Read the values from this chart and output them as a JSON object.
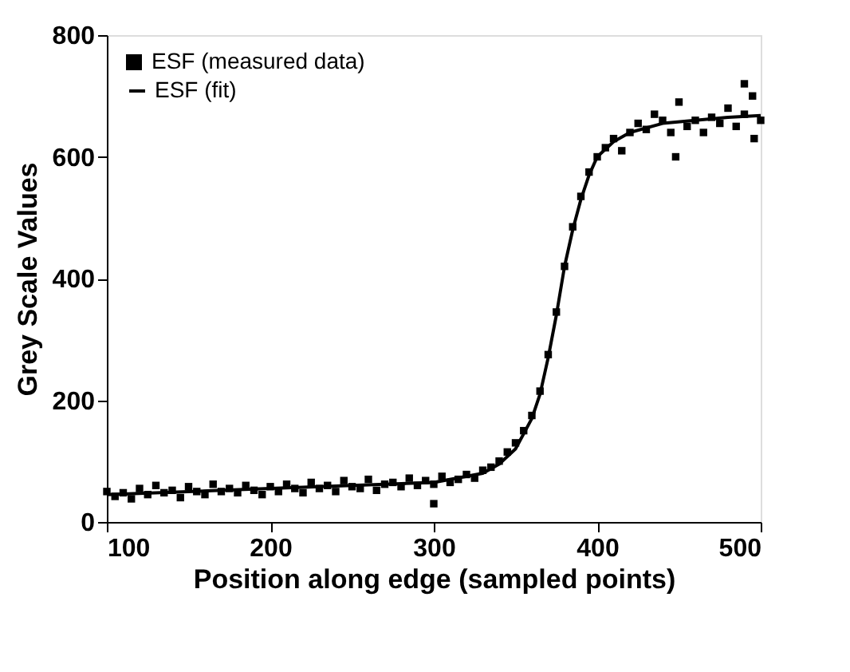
{
  "chart_data": {
    "type": "scatter",
    "xlabel": "Position along edge (sampled points)",
    "ylabel": "Grey Scale Values",
    "xlim": [
      100,
      500
    ],
    "ylim": [
      0,
      800
    ],
    "xticks": [
      100,
      200,
      300,
      400,
      500
    ],
    "yticks": [
      0,
      200,
      400,
      600,
      800
    ],
    "grid": false,
    "legend": "top left",
    "series": [
      {
        "name": "ESF (measured data)",
        "marker": "square",
        "color": "#000000",
        "x": [
          100,
          105,
          110,
          115,
          120,
          125,
          130,
          135,
          140,
          145,
          150,
          155,
          160,
          165,
          170,
          175,
          180,
          185,
          190,
          195,
          200,
          205,
          210,
          215,
          220,
          225,
          230,
          235,
          240,
          245,
          250,
          255,
          260,
          265,
          270,
          275,
          280,
          285,
          290,
          295,
          300,
          305,
          310,
          315,
          320,
          325,
          330,
          335,
          340,
          345,
          350,
          355,
          360,
          365,
          370,
          375,
          380,
          385,
          390,
          395,
          400,
          405,
          410,
          415,
          420,
          425,
          430,
          435,
          440,
          445,
          450,
          455,
          460,
          465,
          470,
          475,
          480,
          485,
          490,
          495,
          500,
          300,
          448,
          490,
          496
        ],
        "values": [
          50,
          42,
          48,
          38,
          55,
          45,
          60,
          48,
          52,
          40,
          58,
          50,
          45,
          62,
          50,
          55,
          48,
          60,
          52,
          45,
          58,
          50,
          62,
          55,
          48,
          65,
          55,
          60,
          50,
          68,
          58,
          55,
          70,
          52,
          62,
          65,
          58,
          72,
          60,
          68,
          62,
          75,
          65,
          70,
          78,
          72,
          85,
          90,
          100,
          115,
          130,
          150,
          175,
          215,
          275,
          345,
          420,
          485,
          535,
          575,
          600,
          615,
          630,
          610,
          640,
          655,
          645,
          670,
          660,
          640,
          690,
          650,
          660,
          640,
          665,
          655,
          680,
          650,
          670,
          700,
          660,
          30,
          600,
          720,
          630
        ]
      },
      {
        "name": "ESF (fit)",
        "type": "line",
        "line_style": "solid",
        "color": "#000000",
        "x": [
          100,
          200,
          300,
          330,
          340,
          350,
          360,
          365,
          370,
          375,
          380,
          385,
          390,
          395,
          400,
          410,
          420,
          440,
          460,
          480,
          500
        ],
        "values": [
          45,
          55,
          65,
          80,
          95,
          120,
          170,
          210,
          270,
          340,
          420,
          480,
          530,
          570,
          600,
          625,
          640,
          655,
          660,
          665,
          668
        ]
      }
    ]
  }
}
